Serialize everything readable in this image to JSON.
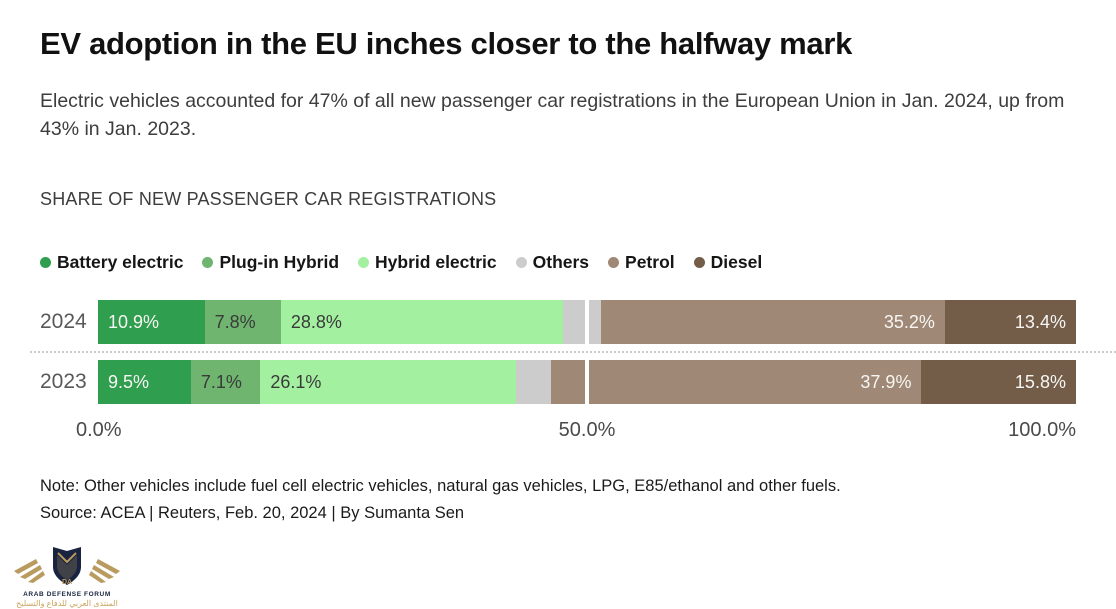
{
  "header": {
    "title": "EV adoption in the EU inches closer to the halfway mark",
    "subtitle": "Electric vehicles accounted for 47% of all new passenger car registrations in the European Union in Jan. 2024, up from 43% in Jan. 2023.",
    "kicker": "SHARE OF NEW PASSENGER CAR REGISTRATIONS"
  },
  "chart_data": {
    "type": "bar",
    "orientation": "horizontal",
    "stacked": true,
    "unit": "%",
    "title": "SHARE OF NEW PASSENGER CAR REGISTRATIONS",
    "categories": [
      "2024",
      "2023"
    ],
    "series": [
      {
        "name": "Battery electric",
        "color": "#2f9e4f",
        "values": [
          10.9,
          9.5
        ],
        "label_style": "light",
        "label_align": "left"
      },
      {
        "name": "Plug-in Hybrid",
        "color": "#6fb570",
        "values": [
          7.8,
          7.1
        ],
        "label_style": "dark",
        "label_align": "left"
      },
      {
        "name": "Hybrid electric",
        "color": "#a3f1a0",
        "values": [
          28.8,
          26.1
        ],
        "label_style": "dark",
        "label_align": "left"
      },
      {
        "name": "Others",
        "color": "#cccccc",
        "values": [
          3.9,
          3.6
        ],
        "label_style": "none",
        "label_align": "none"
      },
      {
        "name": "Petrol",
        "color": "#9f8876",
        "values": [
          35.2,
          37.9
        ],
        "label_style": "light",
        "label_align": "right"
      },
      {
        "name": "Diesel",
        "color": "#735c48",
        "values": [
          13.4,
          15.8
        ],
        "label_style": "light",
        "label_align": "right"
      }
    ],
    "x_axis": {
      "range": [
        0,
        100
      ],
      "ticks": [
        "0.0%",
        "50.0%",
        "100.0%"
      ],
      "gridline_at_percent": 50
    },
    "legend_position": "top",
    "value_suffix": "%"
  },
  "footer": {
    "note": "Note: Other vehicles include fuel cell electric vehicles, natural gas vehicles, LPG, E85/ethanol and other fuels.",
    "source": "Source: ACEA | Reuters, Feb. 20, 2024 | By Sumanta Sen"
  },
  "watermark": {
    "line1": "ARAB DEFENSE FORUM",
    "line2": "المنتدى العربي للدفاع والتسليح",
    "colors": {
      "navy": "#1a2440",
      "gold": "#b99a5f"
    }
  }
}
